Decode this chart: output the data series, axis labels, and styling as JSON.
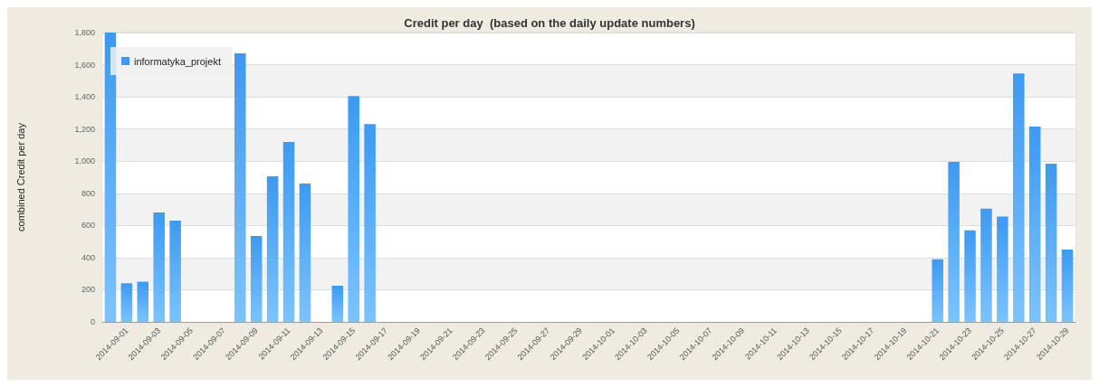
{
  "chart_data": {
    "type": "bar",
    "title": "Credit per day  (based on the daily update numbers)",
    "ylabel": "combined Credit per day",
    "categories": [
      null,
      "2014-09-01",
      null,
      "2014-09-03",
      null,
      "2014-09-05",
      null,
      "2014-09-07",
      null,
      "2014-09-09",
      null,
      "2014-09-11",
      null,
      "2014-09-13",
      null,
      "2014-09-15",
      null,
      "2014-09-17",
      null,
      "2014-09-19",
      null,
      "2014-09-21",
      null,
      "2014-09-23",
      null,
      "2014-09-25",
      null,
      "2014-09-27",
      null,
      "2014-09-29",
      null,
      "2014-10-01",
      null,
      "2014-10-03",
      null,
      "2014-10-05",
      null,
      "2014-10-07",
      null,
      "2014-10-09",
      null,
      "2014-10-11",
      null,
      "2014-10-13",
      null,
      "2014-10-15",
      null,
      "2014-10-17",
      null,
      "2014-10-19",
      null,
      "2014-10-21",
      null,
      "2014-10-23",
      null,
      "2014-10-25",
      null,
      "2014-10-27",
      null,
      "2014-10-29"
    ],
    "series": [
      {
        "name": "informatyka_projekt",
        "color": "#3d9af0",
        "values": [
          1800,
          240,
          250,
          680,
          630,
          0,
          0,
          0,
          1670,
          535,
          905,
          1120,
          860,
          0,
          225,
          1405,
          1230,
          0,
          0,
          0,
          0,
          0,
          0,
          0,
          0,
          0,
          0,
          0,
          0,
          0,
          0,
          0,
          0,
          0,
          0,
          0,
          0,
          0,
          0,
          0,
          0,
          0,
          0,
          0,
          0,
          0,
          0,
          0,
          0,
          0,
          0,
          390,
          995,
          570,
          705,
          655,
          1545,
          1215,
          985,
          450
        ]
      }
    ],
    "ylim": [
      0,
      1800
    ],
    "yticks": [
      0,
      200,
      400,
      600,
      800,
      {
        "value": 1000,
        "label": "1,000"
      },
      {
        "value": 1200,
        "label": "1,200"
      },
      {
        "value": 1400,
        "label": "1,400"
      },
      {
        "value": 1600,
        "label": "1,600"
      },
      {
        "value": 1800,
        "label": "1,800"
      }
    ],
    "grid": "y",
    "legend": "top left"
  }
}
